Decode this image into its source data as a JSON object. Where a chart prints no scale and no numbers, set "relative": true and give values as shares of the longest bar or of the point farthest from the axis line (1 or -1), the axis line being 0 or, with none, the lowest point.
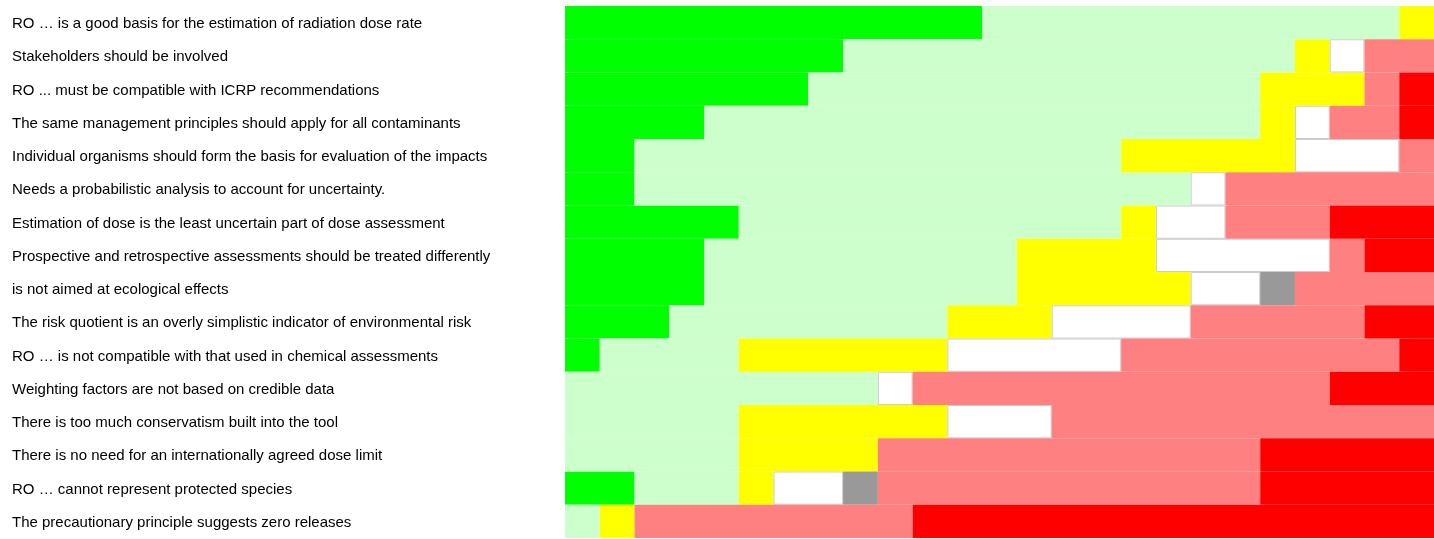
{
  "chart_data": {
    "type": "bar",
    "orientation": "horizontal",
    "stacked": true,
    "relative": true,
    "categories": [
      "RO … is a good basis for the estimation of radiation dose rate",
      "Stakeholders should be involved",
      "RO ... must be compatible with ICRP recommendations",
      "The same management principles should apply for all contaminants",
      "Individual organisms should form the basis for evaluation of the impacts",
      "Needs a probabilistic analysis to account for uncertainty.",
      "Estimation of dose is the least uncertain part of dose assessment",
      "Prospective and retrospective assessments should be treated differently",
      "is not aimed at ecological effects",
      "The risk quotient is an overly simplistic indicator of environmental risk",
      "RO … is not compatible with that used in chemical assessments",
      "Weighting factors are not based on credible data",
      "There is too much conservatism built into the tool",
      "There is no need for an internationally agreed dose limit",
      "RO … cannot represent protected species",
      "The precautionary principle suggests zero releases"
    ],
    "series": [
      {
        "color": "#00ff00",
        "values": [
          0.48,
          0.32,
          0.28,
          0.16,
          0.08,
          0.08,
          0.2,
          0.16,
          0.16,
          0.12,
          0.04,
          0,
          0,
          0,
          0.08,
          0
        ]
      },
      {
        "color": "#ccffcc",
        "values": [
          0.48,
          0.52,
          0.52,
          0.64,
          0.56,
          0.64,
          0.44,
          0.36,
          0.36,
          0.32,
          0.16,
          0.36,
          0.2,
          0.2,
          0.12,
          0.04
        ]
      },
      {
        "color": "#ffff00",
        "values": [
          0.04,
          0.04,
          0.12,
          0.04,
          0.2,
          0,
          0.04,
          0.16,
          0.2,
          0.12,
          0.24,
          0,
          0.24,
          0.16,
          0.04,
          0.04
        ]
      },
      {
        "color": "#ffffff",
        "values": [
          0,
          0.04,
          0,
          0.04,
          0.12,
          0.04,
          0.08,
          0.2,
          0.08,
          0.16,
          0.2,
          0.04,
          0.12,
          0,
          0.08,
          0
        ]
      },
      {
        "color": "#999999",
        "values": [
          0,
          0,
          0,
          0,
          0,
          0,
          0,
          0,
          0.04,
          0,
          0,
          0,
          0,
          0,
          0.04,
          0
        ]
      },
      {
        "color": "#ff8080",
        "values": [
          0,
          0.08,
          0.04,
          0.08,
          0.04,
          0.24,
          0.12,
          0.04,
          0.16,
          0.2,
          0.32,
          0.48,
          0.44,
          0.44,
          0.44,
          0.32
        ]
      },
      {
        "color": "#ff0000",
        "values": [
          0,
          0,
          0.04,
          0.04,
          0,
          0,
          0.12,
          0.08,
          0,
          0.08,
          0.04,
          0.12,
          0,
          0.2,
          0.2,
          0.6
        ]
      }
    ]
  }
}
